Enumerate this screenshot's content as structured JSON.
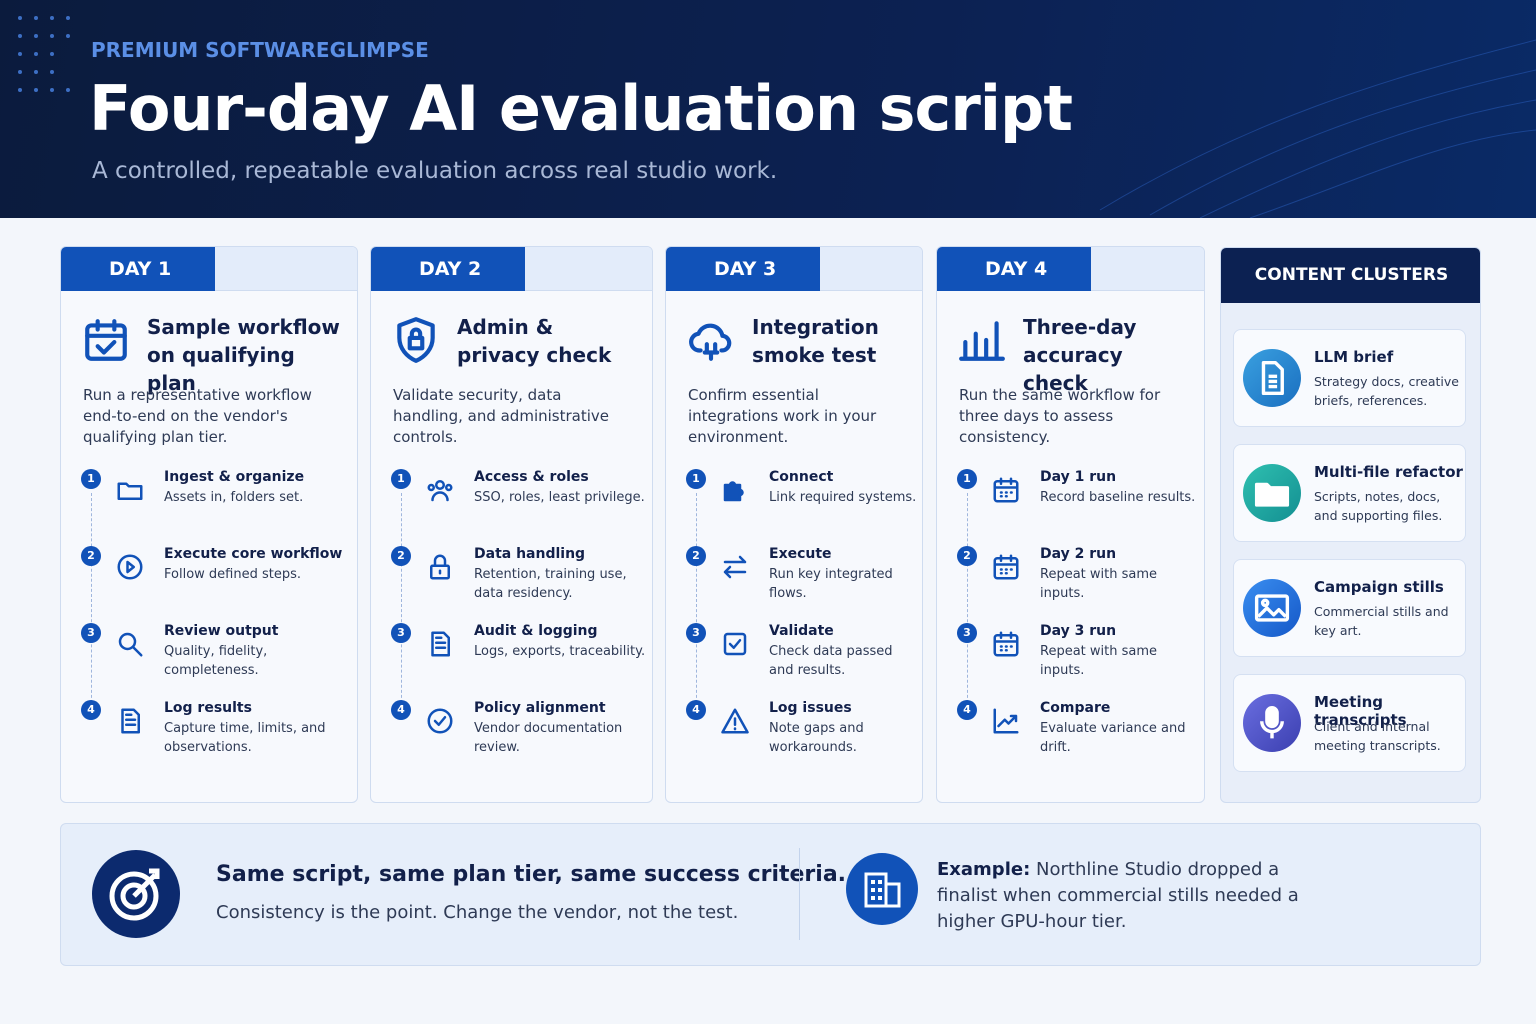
{
  "header": {
    "eyebrow": "PREMIUM SOFTWAREGLIMPSE",
    "title": "Four-day AI evaluation script",
    "subtitle": "A controlled, repeatable evaluation across real studio work."
  },
  "days": [
    {
      "label": "DAY 1",
      "title": "Sample workflow on qualifying plan",
      "description": "Run a representative workflow end-to-end on the vendor's qualifying plan tier.",
      "steps": [
        {
          "number": "1",
          "title": "Ingest & organize",
          "text": "Assets in, folders set."
        },
        {
          "number": "2",
          "title": "Execute core workflow",
          "text": "Follow defined steps."
        },
        {
          "number": "3",
          "title": "Review output",
          "text": "Quality, fidelity, completeness."
        },
        {
          "number": "4",
          "title": "Log results",
          "text": "Capture time, limits, and observations."
        }
      ]
    },
    {
      "label": "DAY 2",
      "title": "Admin & privacy check",
      "description": "Validate security, data handling, and administrative controls.",
      "steps": [
        {
          "number": "1",
          "title": "Access & roles",
          "text": "SSO, roles, least privilege."
        },
        {
          "number": "2",
          "title": "Data handling",
          "text": "Retention, training use, data residency."
        },
        {
          "number": "3",
          "title": "Audit & logging",
          "text": "Logs, exports, traceability."
        },
        {
          "number": "4",
          "title": "Policy alignment",
          "text": "Vendor documentation review."
        }
      ]
    },
    {
      "label": "DAY 3",
      "title": "Integration smoke test",
      "description": "Confirm essential integrations work in your environment.",
      "steps": [
        {
          "number": "1",
          "title": "Connect",
          "text": "Link required systems."
        },
        {
          "number": "2",
          "title": "Execute",
          "text": "Run key integrated flows."
        },
        {
          "number": "3",
          "title": "Validate",
          "text": "Check data passed and results."
        },
        {
          "number": "4",
          "title": "Log issues",
          "text": "Note gaps and workarounds."
        }
      ]
    },
    {
      "label": "DAY 4",
      "title": "Three-day accuracy check",
      "description": "Run the same workflow for three days to assess consistency.",
      "steps": [
        {
          "number": "1",
          "title": "Day 1 run",
          "text": "Record baseline results."
        },
        {
          "number": "2",
          "title": "Day 2 run",
          "text": "Repeat with same inputs."
        },
        {
          "number": "3",
          "title": "Day 3 run",
          "text": "Repeat with same inputs."
        },
        {
          "number": "4",
          "title": "Compare",
          "text": "Evaluate variance and drift."
        }
      ]
    }
  ],
  "clusters": {
    "title": "CONTENT CLUSTERS",
    "items": [
      {
        "title": "LLM brief",
        "text": "Strategy docs, creative briefs, references."
      },
      {
        "title": "Multi-file refactor",
        "text": "Scripts, notes, docs, and supporting files."
      },
      {
        "title": "Campaign stills",
        "text": "Commercial stills and key art."
      },
      {
        "title": "Meeting transcripts",
        "text": "Client and internal meeting transcripts."
      }
    ]
  },
  "footer": {
    "left": {
      "title": "Same script, same plan tier, same success criteria.",
      "text": "Consistency is the point. Change the vendor, not the test."
    },
    "right": {
      "label": "Example:",
      "text": "Northline Studio dropped a finalist when commercial stills needed a higher GPU-hour tier."
    }
  }
}
